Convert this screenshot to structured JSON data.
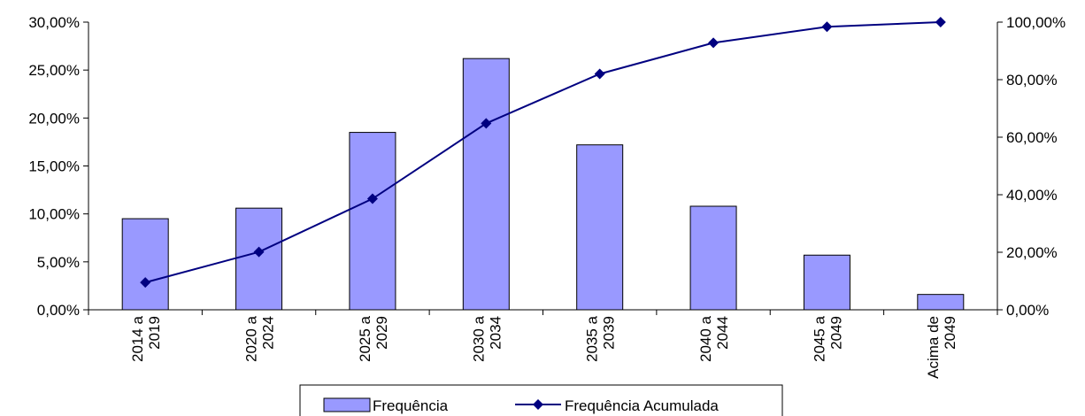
{
  "chart_data": {
    "type": "bar",
    "categories": [
      [
        "2014 a",
        "2019"
      ],
      [
        "2020 a",
        "2024"
      ],
      [
        "2025 a",
        "2029"
      ],
      [
        "2030 a",
        "2034"
      ],
      [
        "2035 a",
        "2039"
      ],
      [
        "2040 a",
        "2044"
      ],
      [
        "2045 a",
        "2049"
      ],
      [
        "Acima de",
        "2049"
      ]
    ],
    "series": [
      {
        "name": "Frequência",
        "type": "bar",
        "axis": "left",
        "values": [
          9.5,
          10.6,
          18.5,
          26.2,
          17.2,
          10.8,
          5.7,
          1.6
        ]
      },
      {
        "name": "Frequência Acumulada",
        "type": "line",
        "axis": "right",
        "values": [
          9.5,
          20.1,
          38.6,
          64.8,
          82.0,
          92.8,
          98.4,
          100.0
        ]
      }
    ],
    "left_axis": {
      "min": 0,
      "max": 30,
      "step": 5,
      "tick_labels": [
        "0,00%",
        "5,00%",
        "10,00%",
        "15,00%",
        "20,00%",
        "25,00%",
        "30,00%"
      ]
    },
    "right_axis": {
      "min": 0,
      "max": 100,
      "step": 20,
      "tick_labels": [
        "0,00%",
        "20,00%",
        "40,00%",
        "60,00%",
        "80,00%",
        "100,00%"
      ]
    },
    "title": "",
    "xlabel": "",
    "ylabel": "",
    "grid": false,
    "legend_position": "bottom",
    "colors": {
      "bar_fill": "#9999ff",
      "bar_stroke": "#000000",
      "line": "#000080",
      "marker": "#000080"
    }
  }
}
